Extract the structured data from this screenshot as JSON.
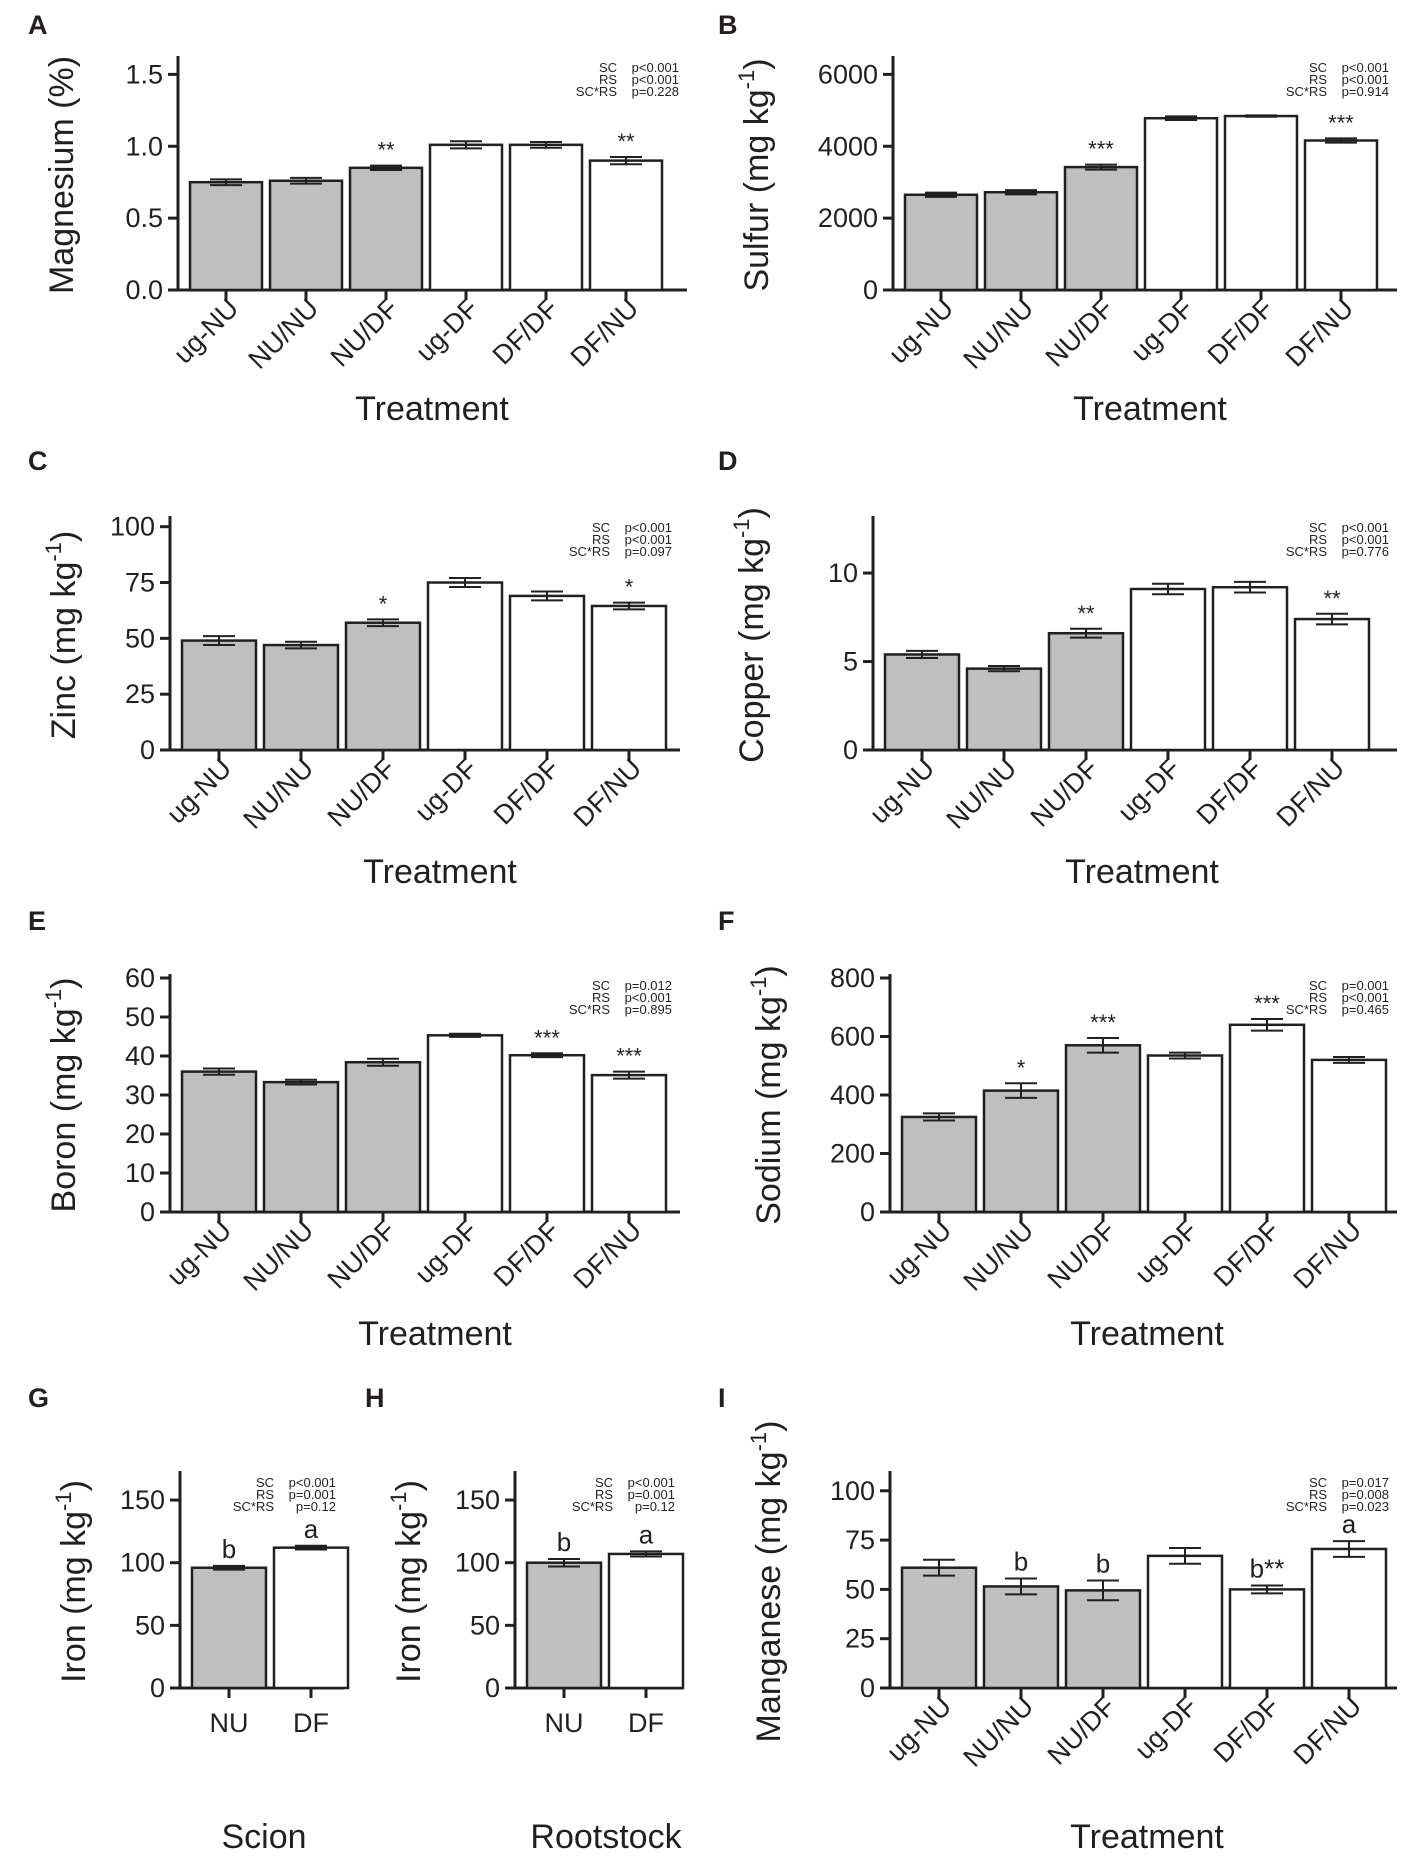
{
  "colors": {
    "group_nu": "#bfbfbf",
    "group_df": "#ffffff",
    "stroke": "#231f20"
  },
  "chart_data": [
    {
      "panel": "A",
      "type": "bar",
      "categories": [
        "ug-NU",
        "NU/NU",
        "NU/DF",
        "ug-DF",
        "DF/DF",
        "DF/NU"
      ],
      "values": [
        0.75,
        0.76,
        0.85,
        1.01,
        1.01,
        0.9
      ],
      "errors": [
        0.02,
        0.02,
        0.015,
        0.025,
        0.02,
        0.025
      ],
      "annotations": [
        "",
        "",
        "**",
        "",
        "",
        "**"
      ],
      "bar_colors": [
        "#bfbfbf",
        "#bfbfbf",
        "#bfbfbf",
        "#ffffff",
        "#ffffff",
        "#ffffff"
      ],
      "ylabel": "Magnesium (%)",
      "xlabel": "Treatment",
      "ylim": [
        0,
        1.6
      ],
      "yticks": [
        0,
        0.5,
        1.0,
        1.5
      ],
      "ytick_labels": [
        "0.0",
        "0.5",
        "1.0",
        "1.5"
      ],
      "stats": [
        [
          "SC",
          "p<0.001"
        ],
        [
          "RS",
          "p<0.001"
        ],
        [
          "SC*RS",
          "p=0.228"
        ]
      ]
    },
    {
      "panel": "B",
      "type": "bar",
      "categories": [
        "ug-NU",
        "NU/NU",
        "NU/DF",
        "ug-DF",
        "DF/DF",
        "DF/NU"
      ],
      "values": [
        2650,
        2720,
        3420,
        4780,
        4840,
        4160
      ],
      "errors": [
        60,
        60,
        70,
        50,
        20,
        60
      ],
      "annotations": [
        "",
        "",
        "***",
        "",
        "",
        "***"
      ],
      "bar_colors": [
        "#bfbfbf",
        "#bfbfbf",
        "#bfbfbf",
        "#ffffff",
        "#ffffff",
        "#ffffff"
      ],
      "ylabel": "Sulfur (mg kg",
      "ylabel_sup": "-1",
      "ylabel_end": ")",
      "xlabel": "Treatment",
      "ylim": [
        0,
        6400
      ],
      "yticks": [
        0,
        2000,
        4000,
        6000
      ],
      "ytick_labels": [
        "0",
        "2000",
        "4000",
        "6000"
      ],
      "stats": [
        [
          "SC",
          "p<0.001"
        ],
        [
          "RS",
          "p<0.001"
        ],
        [
          "SC*RS",
          "p=0.914"
        ]
      ]
    },
    {
      "panel": "C",
      "type": "bar",
      "categories": [
        "ug-NU",
        "NU/NU",
        "NU/DF",
        "ug-DF",
        "DF/DF",
        "DF/NU"
      ],
      "values": [
        49,
        47,
        57,
        75,
        69,
        64.5
      ],
      "errors": [
        2,
        1.5,
        1.5,
        2,
        2,
        1.5
      ],
      "annotations": [
        "",
        "",
        "*",
        "",
        "",
        "*"
      ],
      "bar_colors": [
        "#bfbfbf",
        "#bfbfbf",
        "#bfbfbf",
        "#ffffff",
        "#ffffff",
        "#ffffff"
      ],
      "ylabel": "Zinc (mg kg",
      "ylabel_sup": "-1",
      "ylabel_end": ")",
      "xlabel": "Treatment",
      "ylim": [
        0,
        103
      ],
      "yticks": [
        0,
        25,
        50,
        75,
        100
      ],
      "ytick_labels": [
        "0",
        "25",
        "50",
        "75",
        "100"
      ],
      "stats": [
        [
          "SC",
          "p<0.001"
        ],
        [
          "RS",
          "p<0.001"
        ],
        [
          "SC*RS",
          "p=0.097"
        ]
      ]
    },
    {
      "panel": "D",
      "type": "bar",
      "categories": [
        "ug-NU",
        "NU/NU",
        "NU/DF",
        "ug-DF",
        "DF/DF",
        "DF/NU"
      ],
      "values": [
        5.4,
        4.6,
        6.6,
        9.1,
        9.2,
        7.4
      ],
      "errors": [
        0.2,
        0.15,
        0.25,
        0.3,
        0.3,
        0.3
      ],
      "annotations": [
        "",
        "",
        "**",
        "",
        "",
        "**"
      ],
      "bar_colors": [
        "#bfbfbf",
        "#bfbfbf",
        "#bfbfbf",
        "#ffffff",
        "#ffffff",
        "#ffffff"
      ],
      "ylabel": "Copper (mg kg",
      "ylabel_sup": "-1",
      "ylabel_end": ")",
      "xlabel": "Treatment",
      "ylim": [
        0,
        13
      ],
      "yticks": [
        0,
        5,
        10
      ],
      "ytick_labels": [
        "0",
        "5",
        "10"
      ],
      "stats": [
        [
          "SC",
          "p<0.001"
        ],
        [
          "RS",
          "p<0.001"
        ],
        [
          "SC*RS",
          "p=0.776"
        ]
      ]
    },
    {
      "panel": "E",
      "type": "bar",
      "categories": [
        "ug-NU",
        "NU/NU",
        "NU/DF",
        "ug-DF",
        "DF/DF",
        "DF/NU"
      ],
      "values": [
        36,
        33.3,
        38.4,
        45.3,
        40.2,
        35.1
      ],
      "errors": [
        0.8,
        0.6,
        0.9,
        0.4,
        0.5,
        0.9
      ],
      "annotations": [
        "",
        "",
        "",
        "",
        "***",
        "***"
      ],
      "bar_colors": [
        "#bfbfbf",
        "#bfbfbf",
        "#bfbfbf",
        "#ffffff",
        "#ffffff",
        "#ffffff"
      ],
      "ylabel": "Boron (mg kg",
      "ylabel_sup": "-1",
      "ylabel_end": ")",
      "xlabel": "Treatment",
      "ylim": [
        0,
        60
      ],
      "yticks": [
        0,
        10,
        20,
        30,
        40,
        50,
        60
      ],
      "ytick_labels": [
        "0",
        "10",
        "20",
        "30",
        "40",
        "50",
        "60"
      ],
      "stats": [
        [
          "SC",
          "p=0.012"
        ],
        [
          "RS",
          "p<0.001"
        ],
        [
          "SC*RS",
          "p=0.895"
        ]
      ]
    },
    {
      "panel": "F",
      "type": "bar",
      "categories": [
        "ug-NU",
        "NU/NU",
        "NU/DF",
        "ug-DF",
        "DF/DF",
        "DF/NU"
      ],
      "values": [
        325,
        415,
        570,
        535,
        640,
        520
      ],
      "errors": [
        12,
        25,
        25,
        10,
        20,
        10
      ],
      "annotations": [
        "",
        "*",
        "***",
        "",
        "***",
        ""
      ],
      "bar_colors": [
        "#bfbfbf",
        "#bfbfbf",
        "#bfbfbf",
        "#ffffff",
        "#ffffff",
        "#ffffff"
      ],
      "ylabel": "Sodium (mg kg",
      "ylabel_sup": "-1",
      "ylabel_end": ")",
      "xlabel": "Treatment",
      "ylim": [
        0,
        800
      ],
      "yticks": [
        0,
        200,
        400,
        600,
        800
      ],
      "ytick_labels": [
        "0",
        "200",
        "400",
        "600",
        "800"
      ],
      "stats": [
        [
          "SC",
          "p=0.001"
        ],
        [
          "RS",
          "p<0.001"
        ],
        [
          "SC*RS",
          "p=0.465"
        ]
      ]
    },
    {
      "panel": "G",
      "type": "bar",
      "categories": [
        "NU",
        "DF"
      ],
      "values": [
        96,
        112
      ],
      "errors": [
        1.5,
        1.5
      ],
      "annotations": [
        "b",
        "a"
      ],
      "bar_colors": [
        "#bfbfbf",
        "#ffffff"
      ],
      "ylabel": "Iron (mg kg",
      "ylabel_sup": "-1",
      "ylabel_end": ")",
      "xlabel": "Scion",
      "ylim": [
        0,
        170
      ],
      "yticks": [
        0,
        50,
        100,
        150
      ],
      "ytick_labels": [
        "0",
        "50",
        "100",
        "150"
      ],
      "stats": [
        [
          "SC",
          "p<0.001"
        ],
        [
          "RS",
          "p=0.001"
        ],
        [
          "SC*RS",
          "p=0.12"
        ]
      ]
    },
    {
      "panel": "H",
      "type": "bar",
      "categories": [
        "NU",
        "DF"
      ],
      "values": [
        100,
        107
      ],
      "errors": [
        3,
        2
      ],
      "annotations": [
        "b",
        "a"
      ],
      "bar_colors": [
        "#bfbfbf",
        "#ffffff"
      ],
      "ylabel": "Iron (mg kg",
      "ylabel_sup": "-1",
      "ylabel_end": ")",
      "xlabel": "Rootstock",
      "ylim": [
        0,
        170
      ],
      "yticks": [
        0,
        50,
        100,
        150
      ],
      "ytick_labels": [
        "0",
        "50",
        "100",
        "150"
      ],
      "stats": [
        [
          "SC",
          "p<0.001"
        ],
        [
          "RS",
          "p=0.001"
        ],
        [
          "SC*RS",
          "p=0.12"
        ]
      ]
    },
    {
      "panel": "I",
      "type": "bar",
      "categories": [
        "ug-NU",
        "NU/NU",
        "NU/DF",
        "ug-DF",
        "DF/DF",
        "DF/NU"
      ],
      "values": [
        61,
        51.5,
        49.5,
        67,
        50,
        70.5
      ],
      "errors": [
        4,
        4,
        5,
        4,
        2,
        4
      ],
      "annotations": [
        "",
        "b",
        "b",
        "",
        "b**",
        "a"
      ],
      "bar_colors": [
        "#bfbfbf",
        "#bfbfbf",
        "#bfbfbf",
        "#ffffff",
        "#ffffff",
        "#ffffff"
      ],
      "ylabel": "Manganese (mg kg",
      "ylabel_sup": "-1",
      "ylabel_end": ")",
      "xlabel": "Treatment",
      "ylim": [
        0,
        108
      ],
      "yticks": [
        0,
        25,
        50,
        75,
        100
      ],
      "ytick_labels": [
        "0",
        "25",
        "50",
        "75",
        "100"
      ],
      "stats": [
        [
          "SC",
          "p=0.017"
        ],
        [
          "RS",
          "p=0.008"
        ],
        [
          "SC*RS",
          "p=0.023"
        ]
      ]
    }
  ]
}
